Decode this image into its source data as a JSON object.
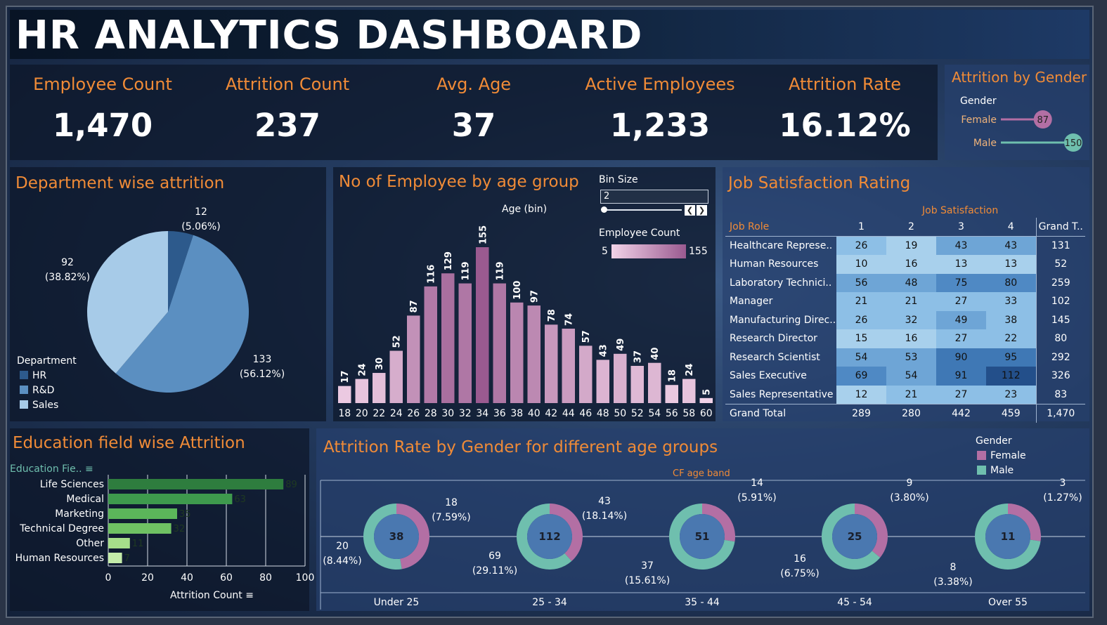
{
  "title": "HR ANALYTICS DASHBOARD",
  "kpis": [
    {
      "label": "Employee Count",
      "value": "1,470"
    },
    {
      "label": "Attrition Count",
      "value": "237"
    },
    {
      "label": "Avg. Age",
      "value": "37"
    },
    {
      "label": "Active Employees",
      "value": "1,233"
    },
    {
      "label": "Attrition Rate",
      "value": "16.12%"
    }
  ],
  "colors": {
    "accent": "#f08b37",
    "female": "#b36fa4",
    "male": "#6fbfae",
    "hr": "#2d5a8c",
    "rd": "#5b8fc1",
    "sales": "#a7cbe8",
    "edu_dark": "#2e7d3e",
    "edu_light": "#b5e39a"
  },
  "chart_data": [
    {
      "type": "bar",
      "title": "Attrition by Gender",
      "legend_title": "Gender",
      "categories": [
        "Female",
        "Male"
      ],
      "values": [
        87,
        150
      ],
      "xlim": [
        0,
        150
      ]
    },
    {
      "type": "pie",
      "title": "Department wise attrition",
      "legend_title": "Department",
      "categories": [
        "HR",
        "R&D",
        "Sales"
      ],
      "values": [
        12,
        133,
        92
      ],
      "percent_labels": [
        "(5.06%)",
        "(56.12%)",
        "(38.82%)"
      ]
    },
    {
      "type": "bar",
      "title": "No of Employee by age group",
      "xlabel": "Age (bin)",
      "bin_size_label": "Bin Size",
      "bin_size": "2",
      "legend_title": "Employee Count",
      "color_range": [
        5,
        155
      ],
      "categories": [
        "18",
        "20",
        "22",
        "24",
        "26",
        "28",
        "30",
        "32",
        "34",
        "36",
        "38",
        "40",
        "42",
        "44",
        "46",
        "48",
        "50",
        "52",
        "54",
        "56",
        "58",
        "60"
      ],
      "values": [
        17,
        24,
        30,
        52,
        87,
        116,
        129,
        119,
        155,
        119,
        100,
        97,
        78,
        74,
        57,
        43,
        49,
        37,
        40,
        18,
        24,
        5
      ]
    },
    {
      "type": "table",
      "title": "Job Satisfaction Rating",
      "column_group": "Job Satisfaction",
      "row_header": "Job Role",
      "columns": [
        "1",
        "2",
        "3",
        "4"
      ],
      "grand_total_label": "Grand T..",
      "rows": [
        {
          "role": "Healthcare Represe..",
          "values": [
            26,
            19,
            43,
            43
          ],
          "total": "131"
        },
        {
          "role": "Human Resources",
          "values": [
            10,
            16,
            13,
            13
          ],
          "total": "52"
        },
        {
          "role": "Laboratory Technici..",
          "values": [
            56,
            48,
            75,
            80
          ],
          "total": "259"
        },
        {
          "role": "Manager",
          "values": [
            21,
            21,
            27,
            33
          ],
          "total": "102"
        },
        {
          "role": "Manufacturing Direc..",
          "values": [
            26,
            32,
            49,
            38
          ],
          "total": "145"
        },
        {
          "role": "Research Director",
          "values": [
            15,
            16,
            27,
            22
          ],
          "total": "80"
        },
        {
          "role": "Research Scientist",
          "values": [
            54,
            53,
            90,
            95
          ],
          "total": "292"
        },
        {
          "role": "Sales Executive",
          "values": [
            69,
            54,
            91,
            112
          ],
          "total": "326"
        },
        {
          "role": "Sales Representative",
          "values": [
            12,
            21,
            27,
            23
          ],
          "total": "83"
        }
      ],
      "totals_row": {
        "label": "Grand Total",
        "values": [
          "289",
          "280",
          "442",
          "459"
        ],
        "total": "1,470"
      }
    },
    {
      "type": "bar",
      "title": "Education field wise Attrition",
      "axis_header": "Education Fie..",
      "xlabel": "Attrition Count",
      "categories": [
        "Life Sciences",
        "Medical",
        "Marketing",
        "Technical Degree",
        "Other",
        "Human Resources"
      ],
      "values": [
        89,
        63,
        35,
        32,
        11,
        7
      ],
      "xlim": [
        0,
        100
      ],
      "xticks": [
        "0",
        "20",
        "40",
        "60",
        "80",
        "100"
      ]
    },
    {
      "type": "pie",
      "title": "Attrition Rate by Gender for different age groups",
      "column_header": "CF age band",
      "legend_title": "Gender",
      "legend": [
        "Female",
        "Male"
      ],
      "groups": [
        {
          "band": "Under 25",
          "total": "38",
          "female": 18,
          "female_pct": "(7.59%)",
          "male": 20,
          "male_pct": "(8.44%)"
        },
        {
          "band": "25 - 34",
          "total": "112",
          "female": 43,
          "female_pct": "(18.14%)",
          "male": 69,
          "male_pct": "(29.11%)"
        },
        {
          "band": "35 - 44",
          "total": "51",
          "female": 14,
          "female_pct": "(5.91%)",
          "male": 37,
          "male_pct": "(15.61%)"
        },
        {
          "band": "45 - 54",
          "total": "25",
          "female": 9,
          "female_pct": "(3.80%)",
          "male": 16,
          "male_pct": "(6.75%)"
        },
        {
          "band": "Over 55",
          "total": "11",
          "female": 3,
          "female_pct": "(1.27%)",
          "male": 8,
          "male_pct": "(3.38%)"
        }
      ]
    }
  ]
}
